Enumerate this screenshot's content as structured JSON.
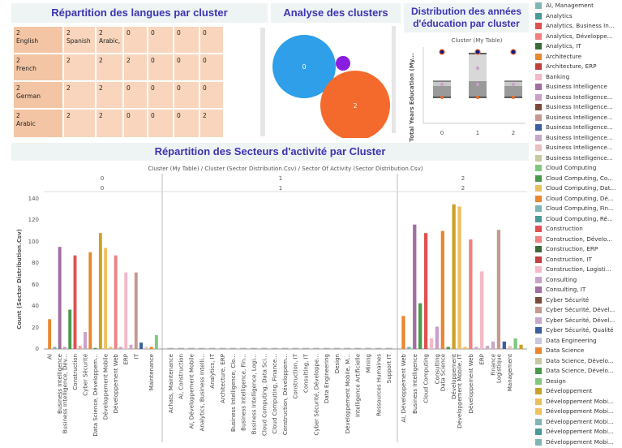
{
  "colors": {
    "title": "#3d34b3",
    "treemap": "#f8d5bc",
    "blue": "#2e9fe8",
    "orange": "#f46a2c",
    "purple": "#8a1ee0"
  },
  "treemap": {
    "title": "Répartition des langues par cluster",
    "cells": [
      {
        "r": 0,
        "c": 0,
        "lines": [
          "2",
          "English"
        ]
      },
      {
        "r": 0,
        "c": 1,
        "lines": [
          "2",
          "Spanish"
        ]
      },
      {
        "r": 0,
        "c": 2,
        "lines": [
          "2",
          "Arabic,"
        ]
      },
      {
        "r": 0,
        "c": 3,
        "lines": [
          "0"
        ]
      },
      {
        "r": 0,
        "c": 4,
        "lines": [
          "0"
        ]
      },
      {
        "r": 0,
        "c": 5,
        "lines": [
          "0"
        ]
      },
      {
        "r": 0,
        "c": 6,
        "lines": [
          "0"
        ]
      },
      {
        "r": 1,
        "c": 0,
        "lines": [
          "2",
          "French"
        ]
      },
      {
        "r": 1,
        "c": 1,
        "lines": [
          "2"
        ]
      },
      {
        "r": 1,
        "c": 2,
        "lines": [
          "2"
        ]
      },
      {
        "r": 1,
        "c": 3,
        "lines": [
          "2"
        ]
      },
      {
        "r": 1,
        "c": 4,
        "lines": [
          "0"
        ]
      },
      {
        "r": 1,
        "c": 5,
        "lines": [
          "0"
        ]
      },
      {
        "r": 1,
        "c": 6,
        "lines": [
          "0"
        ]
      },
      {
        "r": 2,
        "c": 0,
        "lines": [
          "2",
          "German"
        ]
      },
      {
        "r": 2,
        "c": 1,
        "lines": [
          "2"
        ]
      },
      {
        "r": 2,
        "c": 2,
        "lines": [
          "2"
        ]
      },
      {
        "r": 2,
        "c": 3,
        "lines": [
          "0"
        ]
      },
      {
        "r": 2,
        "c": 4,
        "lines": [
          "0"
        ]
      },
      {
        "r": 2,
        "c": 5,
        "lines": [
          "0"
        ]
      },
      {
        "r": 2,
        "c": 6,
        "lines": [
          "0"
        ]
      },
      {
        "r": 3,
        "c": 0,
        "lines": [
          "2",
          "Arabic"
        ]
      },
      {
        "r": 3,
        "c": 1,
        "lines": [
          "2"
        ]
      },
      {
        "r": 3,
        "c": 2,
        "lines": [
          "2"
        ]
      },
      {
        "r": 3,
        "c": 3,
        "lines": [
          "0"
        ]
      },
      {
        "r": 3,
        "c": 4,
        "lines": [
          "0"
        ]
      },
      {
        "r": 3,
        "c": 5,
        "lines": [
          "0"
        ]
      },
      {
        "r": 3,
        "c": 6,
        "lines": [
          "2"
        ]
      }
    ]
  },
  "bubbles": {
    "title": "Analyse des clusters",
    "items": [
      {
        "label": "0",
        "color": "#2e9fe8"
      },
      {
        "label": "",
        "color": "#8a1ee0"
      },
      {
        "label": "2",
        "color": "#f46a2c"
      }
    ]
  },
  "boxplot": {
    "title_line1": "Distribution des années",
    "title_line2": "d'éducation par cluster",
    "header": "Cluster (My Table)",
    "ylabel": "Total Years Education (My...",
    "categories": [
      "0",
      "1",
      "2"
    ]
  },
  "bar": {
    "title": "Répartition des Secteurs d'activité par Cluster",
    "header": "Cluster (My Table)  /  Cluster (Sector Distribution.Csv)  /  Sector Of Activity (Sector Distribution.Csv)",
    "ylabel": "Count (Sector Distribution.Csv)",
    "group_labels": [
      [
        "0",
        "0"
      ],
      [
        "1",
        "1"
      ],
      [
        "2",
        "2"
      ]
    ],
    "yticks": [
      "140",
      "120",
      "100",
      "80",
      "60",
      "40",
      "20",
      "0"
    ]
  },
  "chart_data": [
    {
      "type": "bar",
      "title": "Répartition des Secteurs d'activité par Cluster",
      "ylabel": "Count (Sector Distribution.Csv)",
      "ylim": [
        0,
        145
      ],
      "groups": [
        {
          "cluster": "0",
          "bars": [
            {
              "label": "AI",
              "value": 28,
              "color": "#e8872f"
            },
            {
              "label": "",
              "value": 2,
              "color": "#7fb5b5"
            },
            {
              "label": "Business Intelligence",
              "value": 96,
              "color": "#a06ea0"
            },
            {
              "label": "Business Intelligence, Dév...",
              "value": 2,
              "color": "#c9a0c9"
            },
            {
              "label": "",
              "value": 37,
              "color": "#4a9a4a"
            },
            {
              "label": "Construction",
              "value": 88,
              "color": "#e05050"
            },
            {
              "label": "",
              "value": 3,
              "color": "#f0a0a0"
            },
            {
              "label": "Cyber Sécurité",
              "value": 16,
              "color": "#c9a0c9"
            },
            {
              "label": "",
              "value": 91,
              "color": "#e8872f"
            },
            {
              "label": "Data Science, Développem...",
              "value": 1,
              "color": "#4a9a4a"
            },
            {
              "label": "",
              "value": 109,
              "color": "#c9a227"
            },
            {
              "label": "Développement Mobile",
              "value": 95,
              "color": "#f0c060"
            },
            {
              "label": "",
              "value": 2,
              "color": "#f0c060"
            },
            {
              "label": "Développement Web",
              "value": 88,
              "color": "#f08080"
            },
            {
              "label": "",
              "value": 2,
              "color": "#c8a8c8"
            },
            {
              "label": "ERP",
              "value": 72,
              "color": "#f4b8c8"
            },
            {
              "label": "",
              "value": 4,
              "color": "#c8a8c8"
            },
            {
              "label": "IT",
              "value": 72,
              "color": "#c49a90"
            },
            {
              "label": "",
              "value": 6,
              "color": "#3a5fa0"
            },
            {
              "label": "",
              "value": 2,
              "color": "#e8c0c0"
            },
            {
              "label": "Maintenance",
              "value": 2,
              "color": "#e8872f"
            },
            {
              "label": "",
              "value": 13,
              "color": "#80c880"
            }
          ]
        },
        {
          "cluster": "1",
          "bars": [
            {
              "label": "Achats, Maintenance",
              "value": 1
            },
            {
              "label": "AI, Construction",
              "value": 1
            },
            {
              "label": "AI, Développement Mobile",
              "value": 1
            },
            {
              "label": "Analytics, Business Intelli...",
              "value": 1
            },
            {
              "label": "Analytics, IT",
              "value": 1
            },
            {
              "label": "Architecture, ERP",
              "value": 1
            },
            {
              "label": "Business Intelligence, Clo...",
              "value": 1
            },
            {
              "label": "Business Intelligence, Fin...",
              "value": 1
            },
            {
              "label": "Business Intelligence, Logi...",
              "value": 1
            },
            {
              "label": "Cloud Computing, Data Sci...",
              "value": 1
            },
            {
              "label": "Cloud Computing, Finance...",
              "value": 1
            },
            {
              "label": "Construction, Développem...",
              "value": 1
            },
            {
              "label": "Construction, IT",
              "value": 1
            },
            {
              "label": "Consulting, IT",
              "value": 1
            },
            {
              "label": "Cyber Sécurité, Développe...",
              "value": 1
            },
            {
              "label": "Data Engineering",
              "value": 1
            },
            {
              "label": "Design",
              "value": 1
            },
            {
              "label": "Développement Mobile, M...",
              "value": 1
            },
            {
              "label": "Intelligence Artificielle",
              "value": 1
            },
            {
              "label": "Mining",
              "value": 1
            },
            {
              "label": "Ressources Humaines",
              "value": 1
            },
            {
              "label": "Support IT",
              "value": 1
            }
          ]
        },
        {
          "cluster": "2",
          "bars": [
            {
              "label": "AI, Développement Web",
              "value": 31,
              "color": "#e8872f"
            },
            {
              "label": "",
              "value": 2,
              "color": "#7fb5b5"
            },
            {
              "label": "Business Intelligence",
              "value": 117,
              "color": "#a06ea0"
            },
            {
              "label": "",
              "value": 43,
              "color": "#4a9a4a"
            },
            {
              "label": "Cloud Computing",
              "value": 109,
              "color": "#e05050"
            },
            {
              "label": "",
              "value": 10,
              "color": "#f4b8c8"
            },
            {
              "label": "Consulting",
              "value": 21,
              "color": "#c9a0c9"
            },
            {
              "label": "Data Science",
              "value": 111,
              "color": "#e8872f"
            },
            {
              "label": "",
              "value": 2,
              "color": "#4a9a4a"
            },
            {
              "label": "Développement",
              "value": 136,
              "color": "#c9a227"
            },
            {
              "label": "Développement Mobile, IT",
              "value": 134,
              "color": "#f0c060"
            },
            {
              "label": "",
              "value": 2,
              "color": "#f0c060"
            },
            {
              "label": "Développement Web",
              "value": 103,
              "color": "#f08080"
            },
            {
              "label": "",
              "value": 2,
              "color": "#c8a8c8"
            },
            {
              "label": "ERP",
              "value": 73,
              "color": "#f4b8c8"
            },
            {
              "label": "",
              "value": 3,
              "color": "#c8a8c8"
            },
            {
              "label": "Finance",
              "value": 7,
              "color": "#c8a8c8"
            },
            {
              "label": "Logistique",
              "value": 112,
              "color": "#c49a90"
            },
            {
              "label": "",
              "value": 7,
              "color": "#3a5fa0"
            },
            {
              "label": "Management",
              "value": 3,
              "color": "#e8c0c0"
            },
            {
              "label": "",
              "value": 10,
              "color": "#80c880"
            },
            {
              "label": "",
              "value": 4,
              "color": "#c9a227"
            }
          ]
        }
      ]
    },
    {
      "type": "box",
      "title": "Distribution des années d'éducation par cluster",
      "categories": [
        "0",
        "1",
        "2"
      ]
    }
  ],
  "legend": {
    "items": [
      {
        "label": "AI, Management",
        "color": "#7fb5b5"
      },
      {
        "label": "Analytics",
        "color": "#4a9a9a"
      },
      {
        "label": "Analytics, Business In...",
        "color": "#e05050"
      },
      {
        "label": "Analytics, Développe...",
        "color": "#f08080"
      },
      {
        "label": "Analytics, IT",
        "color": "#3a6a3a"
      },
      {
        "label": "Architecture",
        "color": "#e8872f"
      },
      {
        "label": "Architecture, ERP",
        "color": "#c04040"
      },
      {
        "label": "Banking",
        "color": "#f4b8c8"
      },
      {
        "label": "Business Intelligence",
        "color": "#a06ea0"
      },
      {
        "label": "Business Intelligence...",
        "color": "#c9a0c9"
      },
      {
        "label": "Business Intelligence...",
        "color": "#7a4a3a"
      },
      {
        "label": "Business Intelligence...",
        "color": "#c49a90"
      },
      {
        "label": "Business Intelligence...",
        "color": "#3a5fa0"
      },
      {
        "label": "Business Intelligence...",
        "color": "#c8a8c8"
      },
      {
        "label": "Business Intelligence...",
        "color": "#e8c0c0"
      },
      {
        "label": "Business Intelligence...",
        "color": "#c8c8a0"
      },
      {
        "label": "Cloud Computing",
        "color": "#80c880"
      },
      {
        "label": "Cloud Computing, Co...",
        "color": "#4a9a4a"
      },
      {
        "label": "Cloud Computing, Dat...",
        "color": "#e8c060"
      },
      {
        "label": "Cloud Computing, Dé...",
        "color": "#e8872f"
      },
      {
        "label": "Cloud Computing, Fin...",
        "color": "#7fb5b5"
      },
      {
        "label": "Cloud Computing, Ré...",
        "color": "#4a9a9a"
      },
      {
        "label": "Construction",
        "color": "#e05050"
      },
      {
        "label": "Construction, Dévelo...",
        "color": "#f08080"
      },
      {
        "label": "Construction, ERP",
        "color": "#3a6a3a"
      },
      {
        "label": "Construction, IT",
        "color": "#c04040"
      },
      {
        "label": "Construction, Logisti...",
        "color": "#f4b8c8"
      },
      {
        "label": "Consulting",
        "color": "#c9a0c9"
      },
      {
        "label": "Consulting, IT",
        "color": "#a06ea0"
      },
      {
        "label": "Cyber Sécurité",
        "color": "#7a4a3a"
      },
      {
        "label": "Cyber Sécurité, Dével...",
        "color": "#c49a90"
      },
      {
        "label": "Cyber Sécurité, Dével...",
        "color": "#c8a8c8"
      },
      {
        "label": "Cyber Sécurité, Qualité",
        "color": "#3a5fa0"
      },
      {
        "label": "Data Engineering",
        "color": "#c8c8e0"
      },
      {
        "label": "Data Science",
        "color": "#e8872f"
      },
      {
        "label": "Data Science, Dévelo...",
        "color": "#c8c8a0"
      },
      {
        "label": "Data Science, Dévelo...",
        "color": "#4a9a4a"
      },
      {
        "label": "Design",
        "color": "#80c880"
      },
      {
        "label": "Développement",
        "color": "#c9a227"
      },
      {
        "label": "Développement Mobi...",
        "color": "#e8c060"
      },
      {
        "label": "Développement Mobi...",
        "color": "#f0c060"
      },
      {
        "label": "Développement Mobi...",
        "color": "#7fb5b5"
      },
      {
        "label": "Développement Mobi...",
        "color": "#4a9a9a"
      },
      {
        "label": "Développement Mobi...",
        "color": "#7fb5b5"
      }
    ]
  }
}
